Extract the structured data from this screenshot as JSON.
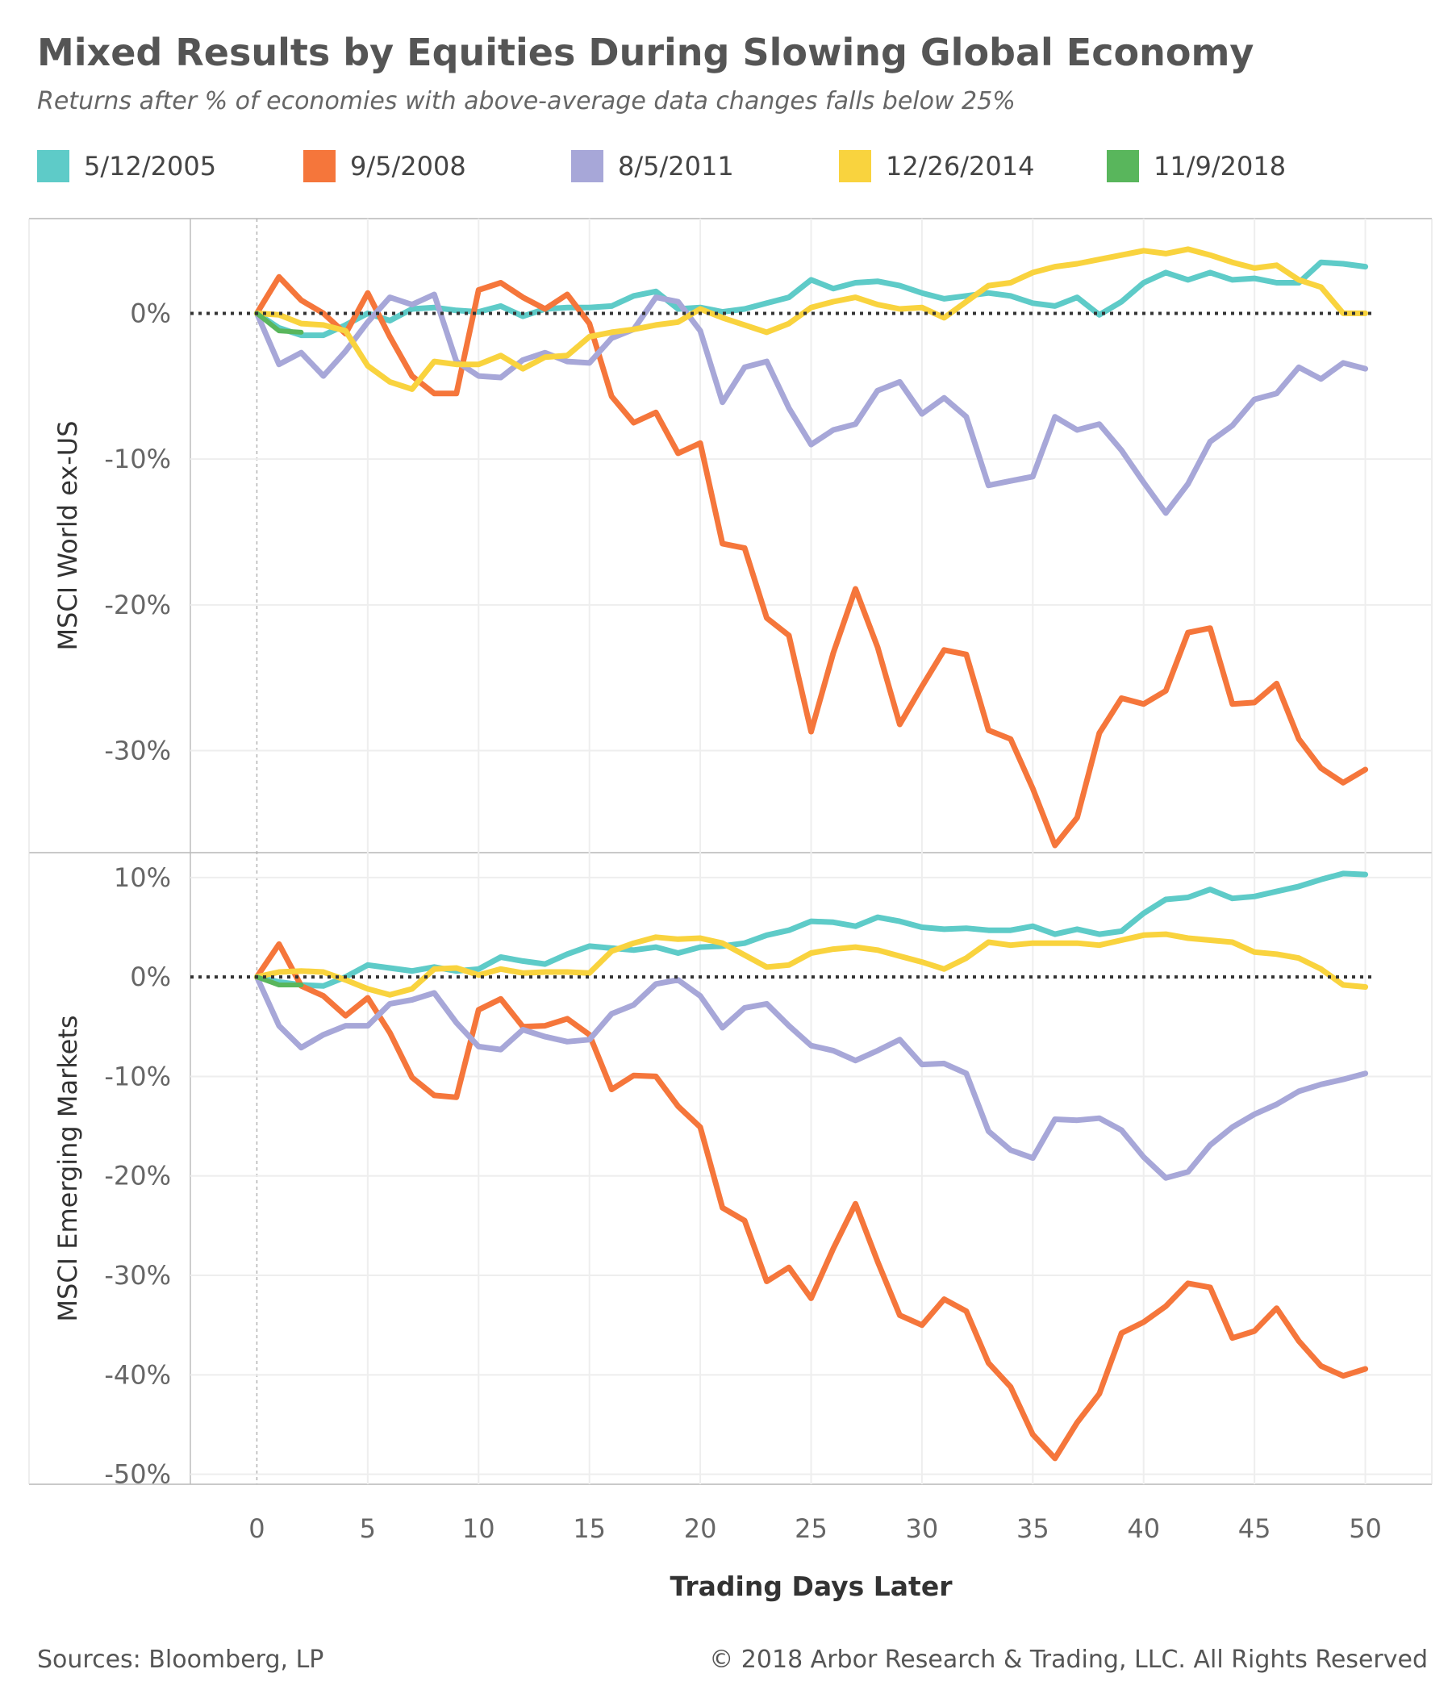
{
  "title": "Mixed Results by Equities During Slowing Global Economy",
  "subtitle": "Returns after % of economies with above-average data changes falls below 25%",
  "legend": [
    {
      "label": "5/12/2005",
      "color": "#5ecbc8"
    },
    {
      "label": "9/5/2008",
      "color": "#f5763b"
    },
    {
      "label": "8/5/2011",
      "color": "#a7a7d8"
    },
    {
      "label": "12/26/2014",
      "color": "#f9d33e"
    },
    {
      "label": "11/9/2018",
      "color": "#59b65c"
    }
  ],
  "footer": {
    "source": "Sources: Bloomberg, LP",
    "copyright": "© 2018 Arbor Research & Trading, LLC. All Rights Reserved"
  },
  "chart_data": [
    {
      "type": "line",
      "ylabel": "MSCI World ex-US",
      "xlabel": "Trading Days Later",
      "xlim": [
        -3,
        53
      ],
      "ylim": [
        -37,
        6.5
      ],
      "yticks": [
        0,
        -10,
        -20,
        -30
      ],
      "ytick_labels": [
        "0%",
        "-10%",
        "-20%",
        "-30%"
      ],
      "xticks": [
        0,
        5,
        10,
        15,
        20,
        25,
        30,
        35,
        40,
        45,
        50
      ],
      "zero_line": "dotted",
      "grid": true,
      "series": [
        {
          "name": "5/12/2005",
          "color": "#5ecbc8",
          "x": [
            0,
            1,
            2,
            3,
            4,
            5,
            6,
            7,
            8,
            9,
            10,
            11,
            12,
            13,
            14,
            15,
            16,
            17,
            18,
            19,
            20,
            21,
            22,
            23,
            24,
            25,
            26,
            27,
            28,
            29,
            30,
            31,
            32,
            33,
            34,
            35,
            36,
            37,
            38,
            39,
            40,
            41,
            42,
            43,
            44,
            45,
            46,
            47,
            48,
            49,
            50
          ],
          "values": [
            0,
            -1,
            -1.5,
            -1.5,
            -0.8,
            0,
            -0.5,
            0.3,
            0.4,
            0.2,
            0.1,
            0.5,
            -0.2,
            0.3,
            0.4,
            0.4,
            0.5,
            1.2,
            1.5,
            0.3,
            0.4,
            0.1,
            0.3,
            0.7,
            1.1,
            2.3,
            1.7,
            2.1,
            2.2,
            1.9,
            1.4,
            1.0,
            1.2,
            1.4,
            1.2,
            0.7,
            0.5,
            1.1,
            -0.1,
            0.8,
            2.1,
            2.8,
            2.3,
            2.8,
            2.3,
            2.4,
            2.1,
            2.1,
            3.5,
            3.4,
            3.2
          ]
        },
        {
          "name": "9/5/2008",
          "color": "#f5763b",
          "x": [
            0,
            1,
            2,
            3,
            4,
            5,
            6,
            7,
            8,
            9,
            10,
            11,
            12,
            13,
            14,
            15,
            16,
            17,
            18,
            19,
            20,
            21,
            22,
            23,
            24,
            25,
            26,
            27,
            28,
            29,
            30,
            31,
            32,
            33,
            34,
            35,
            36,
            37,
            38,
            39,
            40,
            41,
            42,
            43,
            44,
            45,
            46,
            47,
            48,
            49,
            50
          ],
          "values": [
            0,
            2.5,
            0.9,
            0,
            -1.4,
            1.4,
            -1.6,
            -4.3,
            -5.5,
            -5.5,
            1.6,
            2.1,
            1.1,
            0.3,
            1.3,
            -0.7,
            -5.7,
            -7.5,
            -6.8,
            -9.6,
            -8.9,
            -15.8,
            -16.1,
            -20.9,
            -22.1,
            -28.7,
            -23.3,
            -18.9,
            -22.9,
            -28.2,
            -25.6,
            -23.1,
            -23.4,
            -28.6,
            -29.2,
            -32.6,
            -36.5,
            -34.6,
            -28.8,
            -26.4,
            -26.8,
            -25.9,
            -21.9,
            -21.6,
            -26.8,
            -26.7,
            -25.4,
            -29.2,
            -31.2,
            -32.2,
            -31.3
          ]
        },
        {
          "name": "8/5/2011",
          "color": "#a7a7d8",
          "x": [
            0,
            1,
            2,
            3,
            4,
            5,
            6,
            7,
            8,
            9,
            10,
            11,
            12,
            13,
            14,
            15,
            16,
            17,
            18,
            19,
            20,
            21,
            22,
            23,
            24,
            25,
            26,
            27,
            28,
            29,
            30,
            31,
            32,
            33,
            34,
            35,
            36,
            37,
            38,
            39,
            40,
            41,
            42,
            43,
            44,
            45,
            46,
            47,
            48,
            49,
            50
          ],
          "values": [
            0,
            -3.5,
            -2.7,
            -4.3,
            -2.6,
            -0.6,
            1.1,
            0.6,
            1.3,
            -3.3,
            -4.3,
            -4.4,
            -3.2,
            -2.7,
            -3.3,
            -3.4,
            -1.7,
            -1.1,
            1.1,
            0.8,
            -1.2,
            -6.1,
            -3.7,
            -3.3,
            -6.5,
            -9.0,
            -8.0,
            -7.6,
            -5.3,
            -4.7,
            -6.9,
            -5.8,
            -7.1,
            -11.8,
            -11.5,
            -11.2,
            -7.1,
            -8.0,
            -7.6,
            -9.4,
            -11.6,
            -13.7,
            -11.7,
            -8.8,
            -7.7,
            -5.9,
            -5.5,
            -3.7,
            -4.5,
            -3.4,
            -3.8
          ]
        },
        {
          "name": "12/26/2014",
          "color": "#f9d33e",
          "x": [
            0,
            1,
            2,
            3,
            4,
            5,
            6,
            7,
            8,
            9,
            10,
            11,
            12,
            13,
            14,
            15,
            16,
            17,
            18,
            19,
            20,
            21,
            22,
            23,
            24,
            25,
            26,
            27,
            28,
            29,
            30,
            31,
            32,
            33,
            34,
            35,
            36,
            37,
            38,
            39,
            40,
            41,
            42,
            43,
            44,
            45,
            46,
            47,
            48,
            49,
            50
          ],
          "values": [
            0,
            -0.1,
            -0.7,
            -0.8,
            -1.2,
            -3.6,
            -4.7,
            -5.2,
            -3.3,
            -3.5,
            -3.5,
            -2.9,
            -3.8,
            -3.0,
            -2.9,
            -1.6,
            -1.3,
            -1.1,
            -0.8,
            -0.6,
            0.3,
            -0.3,
            -0.8,
            -1.3,
            -0.7,
            0.4,
            0.8,
            1.1,
            0.6,
            0.3,
            0.4,
            -0.3,
            0.8,
            1.9,
            2.1,
            2.8,
            3.2,
            3.4,
            3.7,
            4.0,
            4.3,
            4.1,
            4.4,
            4.0,
            3.5,
            3.1,
            3.3,
            2.3,
            1.8,
            0,
            0
          ]
        },
        {
          "name": "11/9/2018",
          "color": "#59b65c",
          "x": [
            0,
            1,
            2
          ],
          "values": [
            0,
            -1.2,
            -1.3
          ]
        }
      ]
    },
    {
      "type": "line",
      "ylabel": "MSCI Emerging Markets",
      "xlabel": "Trading Days Later",
      "xlim": [
        -3,
        53
      ],
      "ylim": [
        -51,
        12.5
      ],
      "yticks": [
        10,
        0,
        -10,
        -20,
        -30,
        -40,
        -50
      ],
      "ytick_labels": [
        "10%",
        "0%",
        "-10%",
        "-20%",
        "-30%",
        "-40%",
        "-50%"
      ],
      "xticks": [
        0,
        5,
        10,
        15,
        20,
        25,
        30,
        35,
        40,
        45,
        50
      ],
      "zero_line": "dotted",
      "grid": true,
      "series": [
        {
          "name": "5/12/2005",
          "color": "#5ecbc8",
          "x": [
            0,
            1,
            2,
            3,
            4,
            5,
            6,
            7,
            8,
            9,
            10,
            11,
            12,
            13,
            14,
            15,
            16,
            17,
            18,
            19,
            20,
            21,
            22,
            23,
            24,
            25,
            26,
            27,
            28,
            29,
            30,
            31,
            32,
            33,
            34,
            35,
            36,
            37,
            38,
            39,
            40,
            41,
            42,
            43,
            44,
            45,
            46,
            47,
            48,
            49,
            50
          ],
          "values": [
            0,
            -0.5,
            -0.8,
            -0.9,
            0,
            1.2,
            0.9,
            0.6,
            1.0,
            0.6,
            0.8,
            2.0,
            1.6,
            1.3,
            2.3,
            3.1,
            2.9,
            2.7,
            3.0,
            2.4,
            3.0,
            3.1,
            3.4,
            4.2,
            4.7,
            5.6,
            5.5,
            5.1,
            6.0,
            5.6,
            5.0,
            4.8,
            4.9,
            4.7,
            4.7,
            5.1,
            4.3,
            4.8,
            4.3,
            4.6,
            6.4,
            7.8,
            8.0,
            8.8,
            7.9,
            8.1,
            8.6,
            9.1,
            9.8,
            10.4,
            10.3
          ]
        },
        {
          "name": "9/5/2008",
          "color": "#f5763b",
          "x": [
            0,
            1,
            2,
            3,
            4,
            5,
            6,
            7,
            8,
            9,
            10,
            11,
            12,
            13,
            14,
            15,
            16,
            17,
            18,
            19,
            20,
            21,
            22,
            23,
            24,
            25,
            26,
            27,
            28,
            29,
            30,
            31,
            32,
            33,
            34,
            35,
            36,
            37,
            38,
            39,
            40,
            41,
            42,
            43,
            44,
            45,
            46,
            47,
            48,
            49,
            50
          ],
          "values": [
            0,
            3.3,
            -0.9,
            -1.9,
            -3.9,
            -2.1,
            -5.6,
            -10.1,
            -11.9,
            -12.1,
            -3.3,
            -2.2,
            -5.0,
            -4.9,
            -4.2,
            -5.8,
            -11.3,
            -9.9,
            -10.0,
            -13.0,
            -15.1,
            -23.2,
            -24.5,
            -30.6,
            -29.2,
            -32.3,
            -27.3,
            -22.8,
            -28.6,
            -34.0,
            -35.0,
            -32.4,
            -33.6,
            -38.8,
            -41.2,
            -46.0,
            -48.4,
            -44.8,
            -41.9,
            -35.8,
            -34.7,
            -33.1,
            -30.8,
            -31.2,
            -36.3,
            -35.6,
            -33.3,
            -36.6,
            -39.1,
            -40.1,
            -39.4
          ]
        },
        {
          "name": "8/5/2011",
          "color": "#a7a7d8",
          "x": [
            0,
            1,
            2,
            3,
            4,
            5,
            6,
            7,
            8,
            9,
            10,
            11,
            12,
            13,
            14,
            15,
            16,
            17,
            18,
            19,
            20,
            21,
            22,
            23,
            24,
            25,
            26,
            27,
            28,
            29,
            30,
            31,
            32,
            33,
            34,
            35,
            36,
            37,
            38,
            39,
            40,
            41,
            42,
            43,
            44,
            45,
            46,
            47,
            48,
            49,
            50
          ],
          "values": [
            0,
            -4.9,
            -7.1,
            -5.8,
            -4.9,
            -4.9,
            -2.7,
            -2.3,
            -1.6,
            -4.6,
            -7.0,
            -7.3,
            -5.3,
            -6.0,
            -6.5,
            -6.3,
            -3.7,
            -2.8,
            -0.7,
            -0.3,
            -1.9,
            -5.1,
            -3.1,
            -2.7,
            -4.9,
            -6.9,
            -7.4,
            -8.4,
            -7.4,
            -6.3,
            -8.8,
            -8.7,
            -9.7,
            -15.5,
            -17.4,
            -18.2,
            -14.3,
            -14.4,
            -14.2,
            -15.4,
            -18.1,
            -20.2,
            -19.6,
            -16.9,
            -15.1,
            -13.8,
            -12.8,
            -11.5,
            -10.8,
            -10.3,
            -9.7
          ]
        },
        {
          "name": "12/26/2014",
          "color": "#f9d33e",
          "x": [
            0,
            1,
            2,
            3,
            4,
            5,
            6,
            7,
            8,
            9,
            10,
            11,
            12,
            13,
            14,
            15,
            16,
            17,
            18,
            19,
            20,
            21,
            22,
            23,
            24,
            25,
            26,
            27,
            28,
            29,
            30,
            31,
            32,
            33,
            34,
            35,
            36,
            37,
            38,
            39,
            40,
            41,
            42,
            43,
            44,
            45,
            46,
            47,
            48,
            49,
            50
          ],
          "values": [
            0,
            0.5,
            0.6,
            0.5,
            -0.3,
            -1.2,
            -1.8,
            -1.2,
            0.8,
            0.9,
            0.2,
            0.8,
            0.4,
            0.5,
            0.5,
            0.4,
            2.6,
            3.4,
            4.0,
            3.8,
            3.9,
            3.4,
            2.2,
            1.0,
            1.2,
            2.4,
            2.8,
            3.0,
            2.7,
            2.1,
            1.5,
            0.8,
            1.9,
            3.5,
            3.2,
            3.4,
            3.4,
            3.4,
            3.2,
            3.7,
            4.2,
            4.3,
            3.9,
            3.7,
            3.5,
            2.5,
            2.3,
            1.9,
            0.8,
            -0.8,
            -1.0
          ]
        },
        {
          "name": "11/9/2018",
          "color": "#59b65c",
          "x": [
            0,
            1,
            2
          ],
          "values": [
            0,
            -0.8,
            -0.8
          ]
        }
      ]
    }
  ]
}
